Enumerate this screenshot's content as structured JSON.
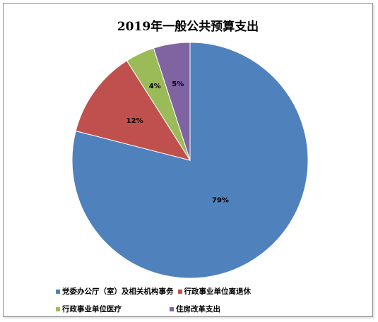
{
  "chart_data": {
    "type": "pie",
    "title": "2019年一般公共预算支出",
    "categories": [
      "党委办公厅（室）及相关机构事务",
      "行政事业单位离退休",
      "行政事业单位医疗",
      "住房改革支出"
    ],
    "values": [
      79,
      12,
      4,
      5
    ],
    "labels": [
      "79%",
      "12%",
      "4%",
      "5%"
    ],
    "colors": [
      "#4f81bd",
      "#c0504d",
      "#9bbb59",
      "#8064a2"
    ],
    "legend_position": "bottom"
  }
}
